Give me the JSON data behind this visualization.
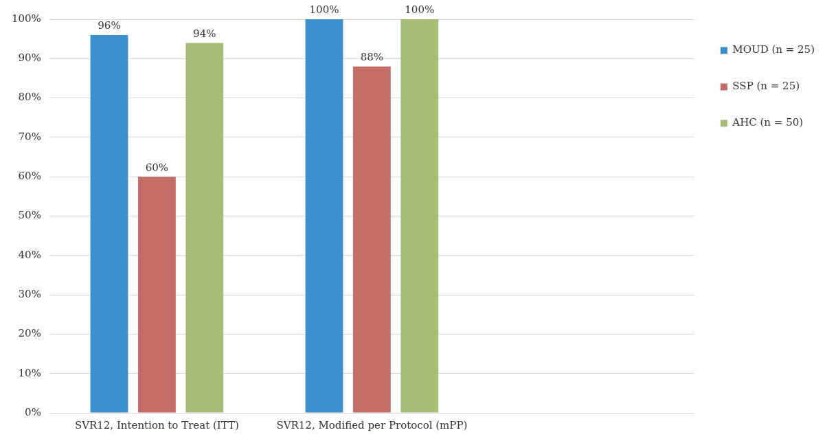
{
  "chart_data": {
    "type": "bar",
    "categories": [
      "SVR12, Intention to Treat (ITT)",
      "SVR12, Modified per Protocol (mPP)",
      null
    ],
    "series": [
      {
        "name": "MOUD (n = 25)",
        "color": "#3a8fcc",
        "values": [
          96,
          100,
          null
        ],
        "value_labels": [
          "96%",
          "100%",
          null
        ]
      },
      {
        "name": "SSP (n = 25)",
        "color": "#c46d67",
        "values": [
          60,
          88,
          null
        ],
        "value_labels": [
          "60%",
          "88%",
          null
        ]
      },
      {
        "name": "AHC (n = 50)",
        "color": "#a4be78",
        "values": [
          94,
          100,
          null
        ],
        "value_labels": [
          "94%",
          "100%",
          null
        ]
      }
    ],
    "ylim": [
      0,
      100
    ],
    "yticks": [
      {
        "value": 0,
        "label": "0%"
      },
      {
        "value": 10,
        "label": "10%"
      },
      {
        "value": 20,
        "label": "20%"
      },
      {
        "value": 30,
        "label": "30%"
      },
      {
        "value": 40,
        "label": "40%"
      },
      {
        "value": 50,
        "label": "50%"
      },
      {
        "value": 60,
        "label": "60%"
      },
      {
        "value": 70,
        "label": "70%"
      },
      {
        "value": 80,
        "label": "80%"
      },
      {
        "value": 90,
        "label": "90%"
      },
      {
        "value": 100,
        "label": "100%"
      }
    ],
    "grid": "y",
    "legend": "top right"
  }
}
